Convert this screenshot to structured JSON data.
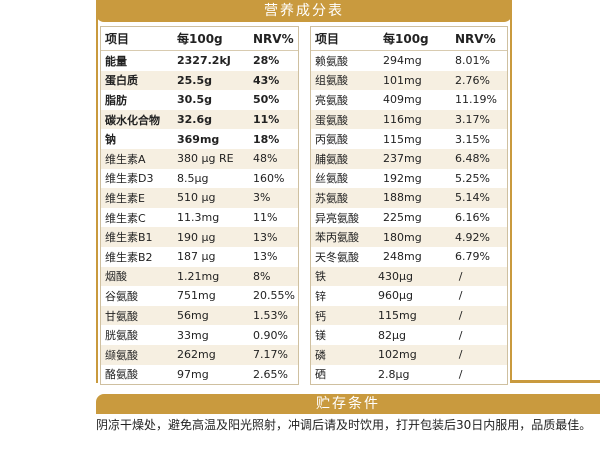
{
  "title": "营养成分表",
  "left_table": {
    "headers": [
      "项目",
      "每100g",
      "NRV%"
    ],
    "rows": [
      {
        "name": "能量",
        "amount": "2327.2kJ",
        "nrv": "28%",
        "bold": true
      },
      {
        "name": "蛋白质",
        "amount": "25.5g",
        "nrv": "43%",
        "bold": true
      },
      {
        "name": "脂肪",
        "amount": "30.5g",
        "nrv": "50%",
        "bold": true
      },
      {
        "name": "碳水化合物",
        "amount": "32.6g",
        "nrv": "11%",
        "bold": true
      },
      {
        "name": "钠",
        "amount": "369mg",
        "nrv": "18%",
        "bold": true
      },
      {
        "name": "维生素A",
        "amount": "380 μg RE",
        "nrv": "48%"
      },
      {
        "name": "维生素D3",
        "amount": "8.5μg",
        "nrv": "160%"
      },
      {
        "name": "维生素E",
        "amount": "510 μg",
        "nrv": "3%"
      },
      {
        "name": "维生素C",
        "amount": "11.3mg",
        "nrv": "11%"
      },
      {
        "name": "维生素B1",
        "amount": "190 μg",
        "nrv": "13%"
      },
      {
        "name": "维生素B2",
        "amount": "187 μg",
        "nrv": "13%"
      },
      {
        "name": "烟酸",
        "amount": "1.21mg",
        "nrv": "8%"
      },
      {
        "name": "谷氨酸",
        "amount": "751mg",
        "nrv": "20.55%"
      },
      {
        "name": "甘氨酸",
        "amount": "56mg",
        "nrv": "1.53%"
      },
      {
        "name": "胱氨酸",
        "amount": "33mg",
        "nrv": "0.90%"
      },
      {
        "name": "缬氨酸",
        "amount": "262mg",
        "nrv": "7.17%"
      },
      {
        "name": "酪氨酸",
        "amount": "97mg",
        "nrv": "2.65%"
      }
    ]
  },
  "right_table": {
    "headers": [
      "项目",
      "每100g",
      "NRV%"
    ],
    "rows": [
      {
        "name": "赖氨酸",
        "amount": "294mg",
        "nrv": "8.01%"
      },
      {
        "name": "组氨酸",
        "amount": "101mg",
        "nrv": "2.76%"
      },
      {
        "name": "亮氨酸",
        "amount": "409mg",
        "nrv": "11.19%"
      },
      {
        "name": "蛋氨酸",
        "amount": "116mg",
        "nrv": "3.17%"
      },
      {
        "name": "丙氨酸",
        "amount": "115mg",
        "nrv": "3.15%"
      },
      {
        "name": "脯氨酸",
        "amount": "237mg",
        "nrv": "6.48%"
      },
      {
        "name": "丝氨酸",
        "amount": "192mg",
        "nrv": "5.25%"
      },
      {
        "name": "苏氨酸",
        "amount": "188mg",
        "nrv": "5.14%"
      },
      {
        "name": "异亮氨酸",
        "amount": "225mg",
        "nrv": "6.16%"
      },
      {
        "name": "苯丙氨酸",
        "amount": "180mg",
        "nrv": "4.92%"
      },
      {
        "name": "天冬氨酸",
        "amount": "248mg",
        "nrv": "6.79%"
      },
      {
        "name": "铁",
        "amount": "430μg",
        "nrv": "/"
      },
      {
        "name": "锌",
        "amount": "960μg",
        "nrv": "/"
      },
      {
        "name": "钙",
        "amount": "115mg",
        "nrv": "/"
      },
      {
        "name": "镁",
        "amount": "82μg",
        "nrv": "/"
      },
      {
        "name": "磷",
        "amount": "102mg",
        "nrv": "/"
      },
      {
        "name": "硒",
        "amount": "2.8μg",
        "nrv": "/"
      }
    ]
  },
  "storage": {
    "title": "贮存条件",
    "text": "阴凉干燥处，避免高温及阳光照射，冲调后请及时饮用，打开包装后30日内服用，品质最佳。"
  },
  "colors": {
    "accent": "#c99a3e",
    "stripe": "#f6efe1",
    "border": "#cfc0a0"
  }
}
